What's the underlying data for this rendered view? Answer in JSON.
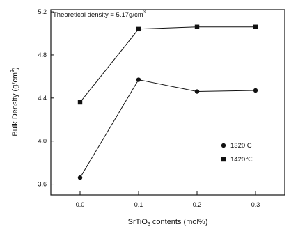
{
  "chart_data": {
    "type": "line",
    "title": "",
    "annotation": "Theoretical density = 5.17g/cm",
    "annotation_superscript": "3",
    "xlabel_main": "SrTiO",
    "xlabel_sub": "3",
    "xlabel_rest": " contents (mol%)",
    "ylabel_main": "Bulk Density (g/cm",
    "ylabel_sup": "3",
    "ylabel_close": ")",
    "x": [
      0.0,
      0.1,
      0.2,
      0.3
    ],
    "x_tick_labels": [
      "0.0",
      "0.1",
      "0.2",
      "0.3"
    ],
    "y_tick_values": [
      3.6,
      4.0,
      4.4,
      4.8,
      5.2
    ],
    "y_tick_labels": [
      "3.6",
      "4.0",
      "4.4",
      "4.8",
      "5.2"
    ],
    "xlim": [
      -0.05,
      0.35
    ],
    "ylim": [
      3.5,
      5.22
    ],
    "grid": false,
    "legend_position": "lower-right",
    "series": [
      {
        "name": "1320 C",
        "marker": "circle",
        "color": "#111111",
        "values": [
          3.66,
          4.57,
          4.46,
          4.47
        ]
      },
      {
        "name": "1420℃",
        "marker": "square",
        "color": "#111111",
        "values": [
          4.36,
          5.04,
          5.06,
          5.06
        ]
      }
    ]
  }
}
